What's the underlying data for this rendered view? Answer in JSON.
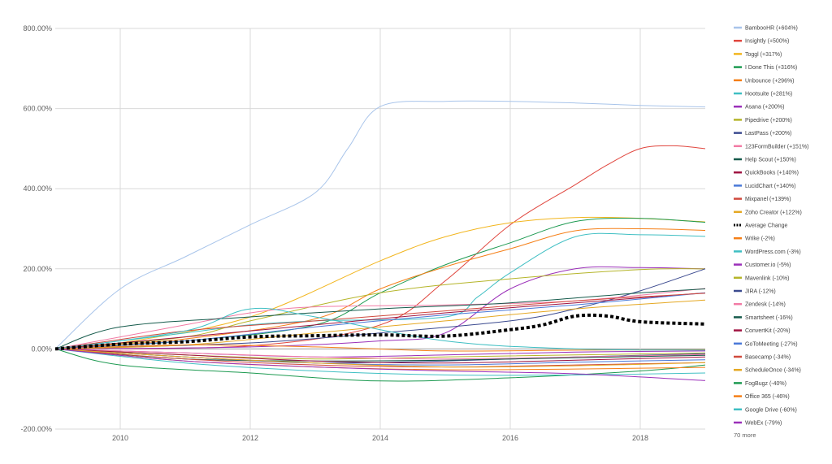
{
  "chart_data": {
    "type": "line",
    "title": "",
    "xlabel": "",
    "ylabel": "",
    "xlim": [
      2009,
      2019
    ],
    "ylim": [
      -200,
      800
    ],
    "x_ticks": [
      {
        "value": 2010,
        "label": "2010"
      },
      {
        "value": 2012,
        "label": "2012"
      },
      {
        "value": 2014,
        "label": "2014"
      },
      {
        "value": 2016,
        "label": "2016"
      },
      {
        "value": 2018,
        "label": "2018"
      }
    ],
    "y_ticks": [
      {
        "value": 800,
        "label": "800.00%"
      },
      {
        "value": 600,
        "label": "600.00%"
      },
      {
        "value": 400,
        "label": "400.00%"
      },
      {
        "value": 200,
        "label": "200.00%"
      },
      {
        "value": 0,
        "label": "0.00%"
      },
      {
        "value": -200,
        "label": "-200.00%"
      }
    ],
    "grid": true,
    "legend_position": "right",
    "legend_more": "70 more",
    "series": [
      {
        "name": "BambooHR (+604%)",
        "color": "#a8c4ea",
        "points": [
          [
            2009,
            0
          ],
          [
            2010,
            150
          ],
          [
            2011,
            230
          ],
          [
            2012,
            310
          ],
          [
            2013,
            390
          ],
          [
            2013.5,
            500
          ],
          [
            2014,
            605
          ],
          [
            2015,
            618
          ],
          [
            2016,
            618
          ],
          [
            2017,
            614
          ],
          [
            2018,
            608
          ],
          [
            2019,
            604
          ]
        ]
      },
      {
        "name": "Insightly (+500%)",
        "color": "#e0463e",
        "points": [
          [
            2009,
            0
          ],
          [
            2012,
            8
          ],
          [
            2014,
            60
          ],
          [
            2015,
            170
          ],
          [
            2016,
            310
          ],
          [
            2017,
            410
          ],
          [
            2017.5,
            460
          ],
          [
            2018,
            500
          ],
          [
            2018.5,
            507
          ],
          [
            2019,
            500
          ]
        ]
      },
      {
        "name": "Toggl (+317%)",
        "color": "#f2b51d",
        "points": [
          [
            2009,
            0
          ],
          [
            2010,
            15
          ],
          [
            2012,
            80
          ],
          [
            2014,
            220
          ],
          [
            2015,
            280
          ],
          [
            2016,
            315
          ],
          [
            2017,
            328
          ],
          [
            2018,
            326
          ],
          [
            2019,
            317
          ]
        ]
      },
      {
        "name": "I Done This (+316%)",
        "color": "#1d9a51",
        "points": [
          [
            2009,
            0
          ],
          [
            2011,
            20
          ],
          [
            2013,
            60
          ],
          [
            2014,
            140
          ],
          [
            2015,
            210
          ],
          [
            2016,
            265
          ],
          [
            2017,
            318
          ],
          [
            2018,
            326
          ],
          [
            2019,
            316
          ]
        ]
      },
      {
        "name": "Unbounce (+296%)",
        "color": "#f57f17",
        "points": [
          [
            2009,
            0
          ],
          [
            2011,
            25
          ],
          [
            2013,
            75
          ],
          [
            2014,
            150
          ],
          [
            2015,
            205
          ],
          [
            2016,
            250
          ],
          [
            2017,
            295
          ],
          [
            2018,
            300
          ],
          [
            2019,
            296
          ]
        ]
      },
      {
        "name": "Hootsuite (+281%)",
        "color": "#3fbfc3",
        "points": [
          [
            2009,
            0
          ],
          [
            2011,
            40
          ],
          [
            2012,
            60
          ],
          [
            2013,
            70
          ],
          [
            2015,
            80
          ],
          [
            2015.5,
            130
          ],
          [
            2016,
            190
          ],
          [
            2017,
            280
          ],
          [
            2018,
            285
          ],
          [
            2019,
            281
          ]
        ]
      },
      {
        "name": "Asana (+200%)",
        "color": "#9b30b9",
        "points": [
          [
            2009,
            0
          ],
          [
            2012,
            5
          ],
          [
            2014,
            20
          ],
          [
            2015,
            40
          ],
          [
            2016,
            150
          ],
          [
            2017,
            200
          ],
          [
            2018,
            203
          ],
          [
            2019,
            200
          ]
        ]
      },
      {
        "name": "Pipedrive (+200%)",
        "color": "#b5b52a",
        "points": [
          [
            2009,
            0
          ],
          [
            2011,
            30
          ],
          [
            2012,
            70
          ],
          [
            2014,
            140
          ],
          [
            2016,
            175
          ],
          [
            2018,
            198
          ],
          [
            2019,
            200
          ]
        ]
      },
      {
        "name": "LastPass (+200%)",
        "color": "#3b4a8f",
        "points": [
          [
            2009,
            0
          ],
          [
            2012,
            15
          ],
          [
            2014,
            40
          ],
          [
            2016,
            70
          ],
          [
            2017,
            100
          ],
          [
            2018,
            145
          ],
          [
            2019,
            200
          ]
        ]
      },
      {
        "name": "123FormBuilder (+151%)",
        "color": "#f27ba5",
        "points": [
          [
            2009,
            0
          ],
          [
            2011,
            60
          ],
          [
            2012,
            90
          ],
          [
            2013,
            105
          ],
          [
            2015,
            110
          ],
          [
            2017,
            120
          ],
          [
            2019,
            151
          ]
        ]
      },
      {
        "name": "Help Scout (+150%)",
        "color": "#165b4c",
        "points": [
          [
            2009,
            0
          ],
          [
            2010,
            55
          ],
          [
            2012,
            80
          ],
          [
            2014,
            100
          ],
          [
            2016,
            115
          ],
          [
            2018,
            140
          ],
          [
            2019,
            150
          ]
        ]
      },
      {
        "name": "QuickBooks (+140%)",
        "color": "#a01442",
        "points": [
          [
            2009,
            0
          ],
          [
            2011,
            30
          ],
          [
            2013,
            60
          ],
          [
            2015,
            90
          ],
          [
            2017,
            115
          ],
          [
            2019,
            140
          ]
        ]
      },
      {
        "name": "LucidChart (+140%)",
        "color": "#4a79d8",
        "points": [
          [
            2009,
            0
          ],
          [
            2011,
            20
          ],
          [
            2013,
            55
          ],
          [
            2015,
            85
          ],
          [
            2017,
            110
          ],
          [
            2019,
            140
          ]
        ]
      },
      {
        "name": "Mixpanel (+139%)",
        "color": "#d04a3d",
        "points": [
          [
            2009,
            0
          ],
          [
            2011,
            45
          ],
          [
            2013,
            70
          ],
          [
            2015,
            95
          ],
          [
            2017,
            120
          ],
          [
            2019,
            139
          ]
        ]
      },
      {
        "name": "Zoho Creator (+122%)",
        "color": "#e5a823",
        "points": [
          [
            2009,
            0
          ],
          [
            2011,
            10
          ],
          [
            2013,
            40
          ],
          [
            2015,
            70
          ],
          [
            2017,
            100
          ],
          [
            2019,
            122
          ]
        ]
      },
      {
        "name": "Average Change",
        "color": "#000000",
        "dashed": true,
        "points": [
          [
            2009,
            0
          ],
          [
            2010,
            12
          ],
          [
            2011,
            18
          ],
          [
            2012,
            30
          ],
          [
            2013,
            33
          ],
          [
            2014,
            35
          ],
          [
            2015,
            32
          ],
          [
            2016,
            48
          ],
          [
            2016.5,
            60
          ],
          [
            2017,
            82
          ],
          [
            2017.5,
            82
          ],
          [
            2018,
            68
          ],
          [
            2019,
            62
          ]
        ]
      },
      {
        "name": "Wrike (-2%)",
        "color": "#f57f17",
        "points": [
          [
            2009,
            0
          ],
          [
            2011,
            10
          ],
          [
            2013,
            5
          ],
          [
            2015,
            -5
          ],
          [
            2017,
            -3
          ],
          [
            2019,
            -2
          ]
        ]
      },
      {
        "name": "WordPress.com (-3%)",
        "color": "#3fbfc3",
        "points": [
          [
            2009,
            0
          ],
          [
            2011,
            45
          ],
          [
            2012,
            100
          ],
          [
            2013,
            80
          ],
          [
            2015,
            20
          ],
          [
            2017,
            0
          ],
          [
            2019,
            -3
          ]
        ]
      },
      {
        "name": "Customer.io (-5%)",
        "color": "#9b30b9",
        "points": [
          [
            2009,
            0
          ],
          [
            2011,
            -10
          ],
          [
            2013,
            -20
          ],
          [
            2015,
            -15
          ],
          [
            2017,
            -8
          ],
          [
            2019,
            -5
          ]
        ]
      },
      {
        "name": "Mavenlink (-10%)",
        "color": "#b5b52a",
        "points": [
          [
            2009,
            0
          ],
          [
            2011,
            -15
          ],
          [
            2013,
            -25
          ],
          [
            2015,
            -20
          ],
          [
            2017,
            -15
          ],
          [
            2019,
            -10
          ]
        ]
      },
      {
        "name": "JIRA (-12%)",
        "color": "#3b4a8f",
        "points": [
          [
            2009,
            0
          ],
          [
            2011,
            -20
          ],
          [
            2013,
            -35
          ],
          [
            2015,
            -30
          ],
          [
            2017,
            -20
          ],
          [
            2019,
            -12
          ]
        ]
      },
      {
        "name": "Zendesk (-14%)",
        "color": "#f27ba5",
        "points": [
          [
            2009,
            0
          ],
          [
            2011,
            -10
          ],
          [
            2013,
            -20
          ],
          [
            2015,
            -25
          ],
          [
            2017,
            -20
          ],
          [
            2019,
            -14
          ]
        ]
      },
      {
        "name": "Smartsheet (-16%)",
        "color": "#165b4c",
        "points": [
          [
            2009,
            0
          ],
          [
            2011,
            -25
          ],
          [
            2013,
            -30
          ],
          [
            2015,
            -28
          ],
          [
            2017,
            -22
          ],
          [
            2019,
            -16
          ]
        ]
      },
      {
        "name": "ConvertKit (-20%)",
        "color": "#a01442",
        "points": [
          [
            2009,
            0
          ],
          [
            2011,
            -15
          ],
          [
            2013,
            -30
          ],
          [
            2015,
            -35
          ],
          [
            2017,
            -28
          ],
          [
            2019,
            -20
          ]
        ]
      },
      {
        "name": "GoToMeeting (-27%)",
        "color": "#4a79d8",
        "points": [
          [
            2009,
            0
          ],
          [
            2011,
            -20
          ],
          [
            2013,
            -35
          ],
          [
            2015,
            -40
          ],
          [
            2017,
            -33
          ],
          [
            2019,
            -27
          ]
        ]
      },
      {
        "name": "Basecamp (-34%)",
        "color": "#d04a3d",
        "points": [
          [
            2009,
            0
          ],
          [
            2011,
            -25
          ],
          [
            2013,
            -40
          ],
          [
            2015,
            -45
          ],
          [
            2017,
            -40
          ],
          [
            2019,
            -34
          ]
        ]
      },
      {
        "name": "ScheduleOnce (-34%)",
        "color": "#e5a823",
        "points": [
          [
            2009,
            0
          ],
          [
            2011,
            -20
          ],
          [
            2013,
            -35
          ],
          [
            2015,
            -45
          ],
          [
            2017,
            -42
          ],
          [
            2019,
            -34
          ]
        ]
      },
      {
        "name": "FogBugz (-40%)",
        "color": "#1d9a51",
        "points": [
          [
            2009,
            0
          ],
          [
            2010,
            -40
          ],
          [
            2012,
            -60
          ],
          [
            2014,
            -80
          ],
          [
            2016,
            -72
          ],
          [
            2018,
            -55
          ],
          [
            2019,
            -40
          ]
        ]
      },
      {
        "name": "Office 365 (-46%)",
        "color": "#f57f17",
        "points": [
          [
            2009,
            0
          ],
          [
            2011,
            -30
          ],
          [
            2013,
            -45
          ],
          [
            2015,
            -52
          ],
          [
            2017,
            -50
          ],
          [
            2019,
            -46
          ]
        ]
      },
      {
        "name": "Google Drive (-60%)",
        "color": "#3fbfc3",
        "points": [
          [
            2009,
            0
          ],
          [
            2011,
            -35
          ],
          [
            2013,
            -55
          ],
          [
            2015,
            -65
          ],
          [
            2017,
            -65
          ],
          [
            2019,
            -60
          ]
        ]
      },
      {
        "name": "WebEx (-79%)",
        "color": "#9b30b9",
        "points": [
          [
            2009,
            0
          ],
          [
            2011,
            -30
          ],
          [
            2013,
            -45
          ],
          [
            2015,
            -55
          ],
          [
            2017,
            -62
          ],
          [
            2019,
            -79
          ]
        ]
      }
    ]
  }
}
